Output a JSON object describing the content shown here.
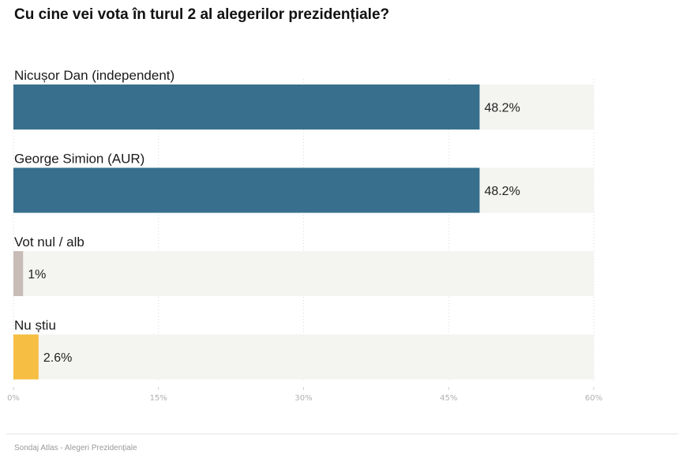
{
  "chart_data": {
    "type": "bar",
    "orientation": "horizontal",
    "title": "Cu cine vei vota în turul 2 al alegerilor prezidențiale?",
    "categories": [
      "Nicușor Dan (independent)",
      "George Simion (AUR)",
      "Vot nul / alb",
      "Nu știu"
    ],
    "values": [
      48.2,
      48.2,
      1,
      2.6
    ],
    "value_labels": [
      "48.2%",
      "48.2%",
      "1%",
      "2.6%"
    ],
    "colors": [
      "#376f8c",
      "#376f8c",
      "#c8bcb6",
      "#f6bf43"
    ],
    "track_color": "#f4f4f1",
    "xlim": [
      0,
      60
    ],
    "ticks": [
      0,
      15,
      30,
      45,
      60
    ],
    "tick_labels": [
      "0%",
      "15%",
      "30%",
      "45%",
      "60%"
    ],
    "grid": true,
    "legend": false
  },
  "footer": {
    "source": "Sondaj Atlas - Alegeri Prezidențiale"
  }
}
